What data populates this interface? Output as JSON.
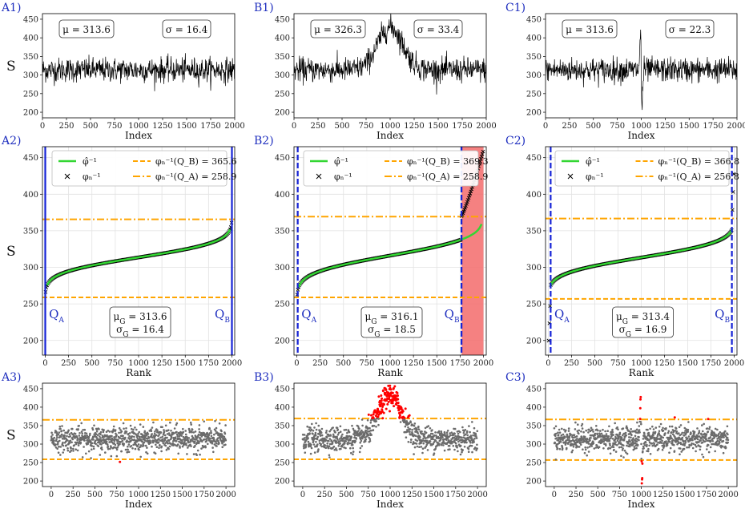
{
  "figure": {
    "panels": [
      {
        "id": "A1",
        "label": "A1)",
        "kind": "series",
        "mu": "μ = 313.6",
        "sigma": "σ = 16.4",
        "xlabel": "Index",
        "ylabel": "S"
      },
      {
        "id": "B1",
        "label": "B1)",
        "kind": "series",
        "mu": "μ = 326.3",
        "sigma": "σ = 33.4",
        "xlabel": "Index",
        "ylabel": ""
      },
      {
        "id": "C1",
        "label": "C1)",
        "kind": "series",
        "mu": "μ = 313.6",
        "sigma": "σ = 22.3",
        "xlabel": "Index",
        "ylabel": ""
      },
      {
        "id": "A2",
        "label": "A2)",
        "kind": "rank",
        "xlabel": "Rank",
        "ylabel": "S",
        "legend": [
          "φ̂⁻¹",
          "φₙ⁻¹",
          "φₙ⁻¹(Q_B) = 365.6",
          "φₙ⁻¹(Q_A) = 258.9"
        ],
        "stats": [
          "μ_G = 313.6",
          "σ_G = 16.4"
        ],
        "qa": "Q_A",
        "qb": "Q_B"
      },
      {
        "id": "B2",
        "label": "B2)",
        "kind": "rank",
        "xlabel": "Rank",
        "ylabel": "",
        "legend": [
          "φ̂⁻¹",
          "φₙ⁻¹",
          "φₙ⁻¹(Q_B) = 369.3",
          "φₙ⁻¹(Q_A) = 258.9"
        ],
        "stats": [
          "μ_G = 316.1",
          "σ_G = 18.5"
        ],
        "qa": "Q_A",
        "qb": "Q_B"
      },
      {
        "id": "C2",
        "label": "C2)",
        "kind": "rank",
        "xlabel": "Rank",
        "ylabel": "",
        "legend": [
          "φ̂⁻¹",
          "φₙ⁻¹",
          "φₙ⁻¹(Q_B) = 366.8",
          "φₙ⁻¹(Q_A) = 256.8"
        ],
        "stats": [
          "μ_G = 313.4",
          "σ_G = 16.9"
        ],
        "qa": "Q_A",
        "qb": "Q_B"
      },
      {
        "id": "A3",
        "label": "A3)",
        "kind": "scatter",
        "xlabel": "Index",
        "ylabel": "S"
      },
      {
        "id": "B3",
        "label": "B3)",
        "kind": "scatter",
        "xlabel": "Index",
        "ylabel": ""
      },
      {
        "id": "C3",
        "label": "C3)",
        "kind": "scatter",
        "xlabel": "Index",
        "ylabel": ""
      }
    ]
  },
  "colors": {
    "series": "#000000",
    "fit": "#33d633",
    "points": "#000000",
    "threshold": "#ffa500",
    "q_line": "#1522d6",
    "outlier": "#ff0000",
    "inlier": "#6b6b6b",
    "shade": "#f36b6b",
    "panel_label": "#1f2fbf"
  },
  "chart_data": [
    {
      "panel": "A1",
      "type": "line",
      "xlabel": "Index",
      "ylabel": "S",
      "xlim": [
        0,
        2000
      ],
      "ylim": [
        185,
        465
      ],
      "xticks": [
        0,
        250,
        500,
        750,
        1000,
        1250,
        1500,
        1750,
        2000
      ],
      "yticks": [
        200,
        250,
        300,
        350,
        400,
        450
      ],
      "n": 2000,
      "mean": 313.6,
      "std": 16.4,
      "anomaly": "none",
      "grid": false
    },
    {
      "panel": "B1",
      "type": "line",
      "xlabel": "Index",
      "ylabel": "",
      "xlim": [
        0,
        2000
      ],
      "ylim": [
        185,
        465
      ],
      "xticks": [
        0,
        250,
        500,
        750,
        1000,
        1250,
        1500,
        1750,
        2000
      ],
      "yticks": [
        200,
        250,
        300,
        350,
        400,
        450
      ],
      "n": 2000,
      "mean": 326.3,
      "std": 33.4,
      "anomaly": "bump",
      "anomaly_center": 1000,
      "anomaly_width": 130,
      "anomaly_peak": 440,
      "grid": false
    },
    {
      "panel": "C1",
      "type": "line",
      "xlabel": "Index",
      "ylabel": "",
      "xlim": [
        0,
        2000
      ],
      "ylim": [
        185,
        465
      ],
      "xticks": [
        0,
        250,
        500,
        750,
        1000,
        1250,
        1500,
        1750,
        2000
      ],
      "yticks": [
        200,
        250,
        300,
        350,
        400,
        450
      ],
      "n": 2000,
      "mean": 313.6,
      "std": 22.3,
      "anomaly": "spike",
      "anomaly_center": 1000,
      "anomaly_peak": 445,
      "anomaly_trough": 195,
      "grid": false
    },
    {
      "panel": "A2",
      "type": "scatter",
      "xlabel": "Rank",
      "ylabel": "S",
      "xlim": [
        -30,
        2030
      ],
      "ylim": [
        180,
        465
      ],
      "xticks": [
        0,
        250,
        500,
        750,
        1000,
        1250,
        1500,
        1750,
        2000
      ],
      "yticks": [
        200,
        250,
        300,
        350,
        400,
        450
      ],
      "mu_g": 313.6,
      "sigma_g": 16.4,
      "q_upper": 365.6,
      "q_lower": 258.9,
      "qa_rank": 0,
      "qb_rank": 2000,
      "tail": "none",
      "grid": true,
      "legend": "top"
    },
    {
      "panel": "B2",
      "type": "scatter",
      "xlabel": "Rank",
      "ylabel": "",
      "xlim": [
        -30,
        2030
      ],
      "ylim": [
        180,
        465
      ],
      "xticks": [
        0,
        250,
        500,
        750,
        1000,
        1250,
        1500,
        1750,
        2000
      ],
      "yticks": [
        200,
        250,
        300,
        350,
        400,
        450
      ],
      "mu_g": 316.1,
      "sigma_g": 18.5,
      "q_upper": 369.3,
      "q_lower": 258.9,
      "qa_rank": 10,
      "qb_rank": 1765,
      "tail": "upper",
      "tail_max": 462,
      "grid": true,
      "legend": "top"
    },
    {
      "panel": "C2",
      "type": "scatter",
      "xlabel": "Rank",
      "ylabel": "",
      "xlim": [
        -30,
        2030
      ],
      "ylim": [
        180,
        465
      ],
      "xticks": [
        0,
        250,
        500,
        750,
        1000,
        1250,
        1500,
        1750,
        2000
      ],
      "yticks": [
        200,
        250,
        300,
        350,
        400,
        450
      ],
      "mu_g": 313.4,
      "sigma_g": 16.9,
      "q_upper": 366.8,
      "q_lower": 256.8,
      "qa_rank": 25,
      "qb_rank": 1975,
      "tail": "both",
      "tail_max": 440,
      "tail_min": 188,
      "grid": true,
      "legend": "top"
    },
    {
      "panel": "A3",
      "type": "scatter",
      "xlabel": "Index",
      "ylabel": "S",
      "xlim": [
        -100,
        2100
      ],
      "ylim": [
        185,
        465
      ],
      "xticks": [
        0,
        250,
        500,
        750,
        1000,
        1250,
        1500,
        1750,
        2000
      ],
      "yticks": [
        200,
        250,
        300,
        350,
        400,
        450
      ],
      "upper": 365.6,
      "lower": 258.9,
      "anomaly": "none",
      "grid": false
    },
    {
      "panel": "B3",
      "type": "scatter",
      "xlabel": "Index",
      "ylabel": "",
      "xlim": [
        -100,
        2100
      ],
      "ylim": [
        185,
        465
      ],
      "xticks": [
        0,
        250,
        500,
        750,
        1000,
        1250,
        1500,
        1750,
        2000
      ],
      "yticks": [
        200,
        250,
        300,
        350,
        400,
        450
      ],
      "upper": 369.3,
      "lower": 258.9,
      "anomaly": "bump",
      "grid": false
    },
    {
      "panel": "C3",
      "type": "scatter",
      "xlabel": "Index",
      "ylabel": "",
      "xlim": [
        -100,
        2100
      ],
      "ylim": [
        185,
        465
      ],
      "xticks": [
        0,
        250,
        500,
        750,
        1000,
        1250,
        1500,
        1750,
        2000
      ],
      "yticks": [
        200,
        250,
        300,
        350,
        400,
        450
      ],
      "upper": 366.8,
      "lower": 256.8,
      "anomaly": "spike",
      "grid": false
    }
  ]
}
